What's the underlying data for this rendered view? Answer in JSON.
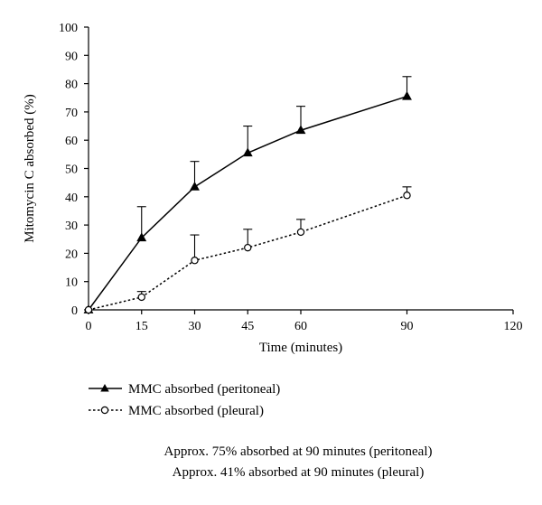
{
  "chart_data": {
    "type": "line",
    "xlabel": "Time (minutes)",
    "ylabel": "Mitomycin C absorbed (%)",
    "xlim": [
      0,
      120
    ],
    "ylim": [
      0,
      100
    ],
    "xticks": [
      0,
      15,
      30,
      45,
      60,
      90,
      120
    ],
    "yticks": [
      0,
      10,
      20,
      30,
      40,
      50,
      60,
      70,
      80,
      90,
      100
    ],
    "grid": false,
    "legend_position": "bottom-left",
    "series": [
      {
        "name": "MMC absorbed (peritoneal)",
        "marker": "filled-triangle",
        "line_style": "solid",
        "x": [
          0,
          15,
          30,
          45,
          60,
          90
        ],
        "y": [
          0,
          25.5,
          43.5,
          55.5,
          63.5,
          75.5
        ],
        "error_upper": [
          0,
          36.5,
          52.5,
          65,
          72,
          82.5
        ]
      },
      {
        "name": "MMC absorbed (pleural)",
        "marker": "open-circle",
        "line_style": "dotted",
        "x": [
          0,
          15,
          30,
          45,
          60,
          90
        ],
        "y": [
          0,
          4.5,
          17.5,
          22,
          27.5,
          40.5
        ],
        "error_upper": [
          0,
          6.5,
          26.5,
          28.5,
          32,
          43.5
        ]
      }
    ],
    "annotations": [
      "Approx. 75% absorbed at 90 minutes (peritoneal)",
      "Approx. 41% absorbed at 90 minutes (pleural)"
    ]
  }
}
